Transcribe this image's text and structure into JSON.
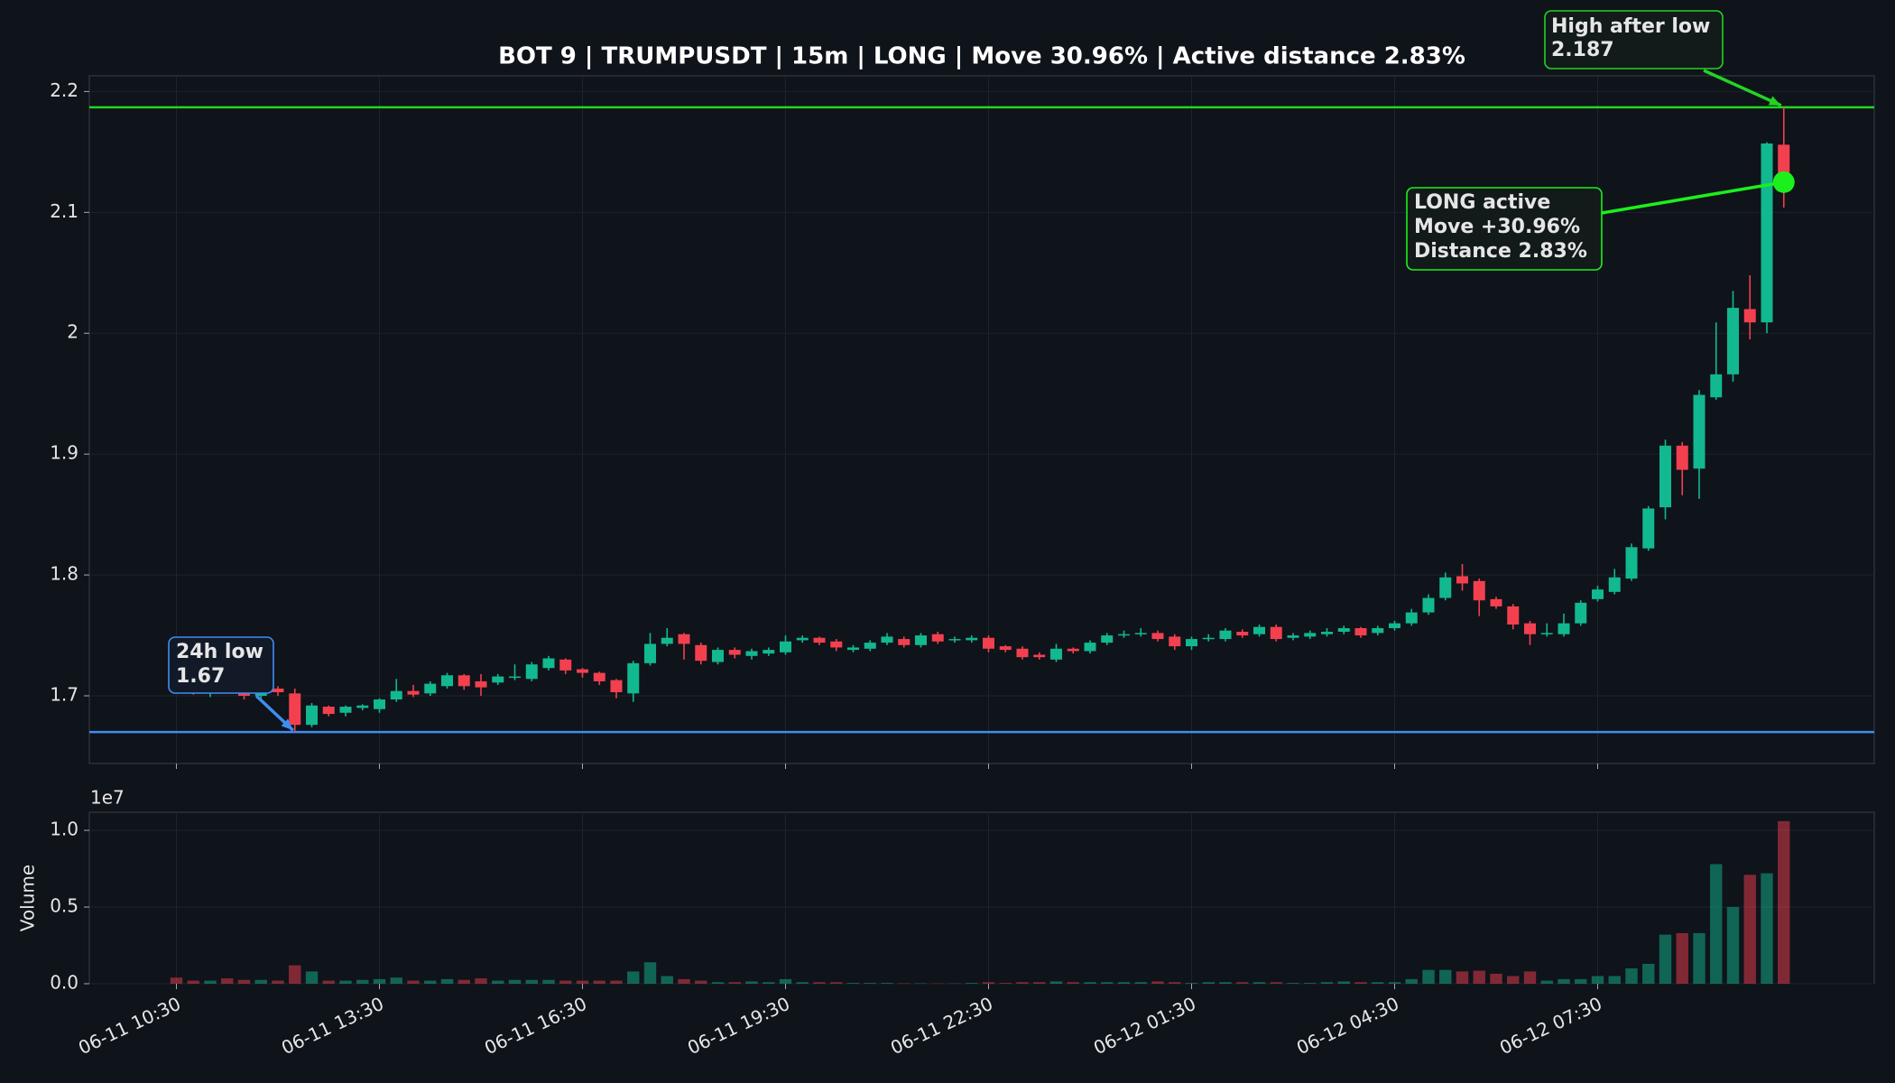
{
  "chart_data": {
    "type": "candlestick",
    "title": "BOT 9 | TRUMPUSDT | 15m | LONG | Move 30.96% | Active distance 2.83%",
    "x": [
      "06-11 10:30",
      "06-11 10:45",
      "06-11 11:00",
      "06-11 11:15",
      "06-11 11:30",
      "06-11 11:45",
      "06-11 12:00",
      "06-11 12:15",
      "06-11 12:30",
      "06-11 12:45",
      "06-11 13:00",
      "06-11 13:15",
      "06-11 13:30",
      "06-11 13:45",
      "06-11 14:00",
      "06-11 14:15",
      "06-11 14:30",
      "06-11 14:45",
      "06-11 15:00",
      "06-11 15:15",
      "06-11 15:30",
      "06-11 15:45",
      "06-11 16:00",
      "06-11 16:15",
      "06-11 16:30",
      "06-11 16:45",
      "06-11 17:00",
      "06-11 17:15",
      "06-11 17:30",
      "06-11 17:45",
      "06-11 18:00",
      "06-11 18:15",
      "06-11 18:30",
      "06-11 18:45",
      "06-11 19:00",
      "06-11 19:15",
      "06-11 19:30",
      "06-11 19:45",
      "06-11 20:00",
      "06-11 20:15",
      "06-11 20:30",
      "06-11 20:45",
      "06-11 21:00",
      "06-11 21:15",
      "06-11 21:30",
      "06-11 21:45",
      "06-11 22:00",
      "06-11 22:15",
      "06-11 22:30",
      "06-11 22:45",
      "06-11 23:00",
      "06-11 23:15",
      "06-11 23:30",
      "06-11 23:45",
      "06-12 00:00",
      "06-12 00:15",
      "06-12 00:30",
      "06-12 00:45",
      "06-12 01:00",
      "06-12 01:15",
      "06-12 01:30",
      "06-12 01:45",
      "06-12 02:00",
      "06-12 02:15",
      "06-12 02:30",
      "06-12 02:45",
      "06-12 03:00",
      "06-12 03:15",
      "06-12 03:30",
      "06-12 03:45",
      "06-12 04:00",
      "06-12 04:15",
      "06-12 04:30",
      "06-12 04:45",
      "06-12 05:00",
      "06-12 05:15",
      "06-12 05:30",
      "06-12 05:45",
      "06-12 06:00",
      "06-12 06:15",
      "06-12 06:30",
      "06-12 06:45",
      "06-12 07:00",
      "06-12 07:15",
      "06-12 07:30",
      "06-12 07:45",
      "06-12 08:00",
      "06-12 08:15",
      "06-12 08:30",
      "06-12 08:45",
      "06-12 09:00",
      "06-12 09:15",
      "06-12 09:30",
      "06-12 09:45",
      "06-12 10:00",
      "06-12 10:15"
    ],
    "open": [
      1.708,
      1.706,
      1.703,
      1.711,
      1.704,
      1.7,
      1.706,
      1.702,
      1.676,
      1.691,
      1.686,
      1.69,
      1.689,
      1.697,
      1.704,
      1.702,
      1.708,
      1.717,
      1.712,
      1.711,
      1.715,
      1.714,
      1.723,
      1.73,
      1.722,
      1.719,
      1.713,
      1.702,
      1.727,
      1.743,
      1.751,
      1.742,
      1.728,
      1.738,
      1.733,
      1.735,
      1.736,
      1.746,
      1.748,
      1.745,
      1.738,
      1.739,
      1.744,
      1.747,
      1.742,
      1.751,
      1.746,
      1.746,
      1.748,
      1.741,
      1.739,
      1.734,
      1.73,
      1.739,
      1.737,
      1.744,
      1.75,
      1.751,
      1.752,
      1.749,
      1.741,
      1.747,
      1.747,
      1.753,
      1.751,
      1.757,
      1.748,
      1.749,
      1.751,
      1.753,
      1.756,
      1.752,
      1.756,
      1.76,
      1.769,
      1.781,
      1.799,
      1.795,
      1.78,
      1.774,
      1.76,
      1.751,
      1.751,
      1.76,
      1.78,
      1.786,
      1.797,
      1.822,
      1.856,
      1.907,
      1.888,
      1.947,
      1.966,
      2.02,
      2.009,
      2.156
    ],
    "high": [
      1.712,
      1.709,
      1.706,
      1.713,
      1.706,
      1.705,
      1.708,
      1.706,
      1.694,
      1.692,
      1.692,
      1.693,
      1.698,
      1.714,
      1.709,
      1.712,
      1.719,
      1.718,
      1.718,
      1.718,
      1.726,
      1.728,
      1.733,
      1.731,
      1.723,
      1.72,
      1.714,
      1.729,
      1.752,
      1.756,
      1.752,
      1.744,
      1.74,
      1.74,
      1.739,
      1.74,
      1.75,
      1.75,
      1.749,
      1.747,
      1.742,
      1.746,
      1.752,
      1.749,
      1.752,
      1.753,
      1.749,
      1.75,
      1.75,
      1.742,
      1.741,
      1.736,
      1.743,
      1.74,
      1.746,
      1.752,
      1.754,
      1.756,
      1.754,
      1.751,
      1.749,
      1.751,
      1.756,
      1.755,
      1.759,
      1.759,
      1.752,
      1.754,
      1.756,
      1.758,
      1.757,
      1.758,
      1.762,
      1.772,
      1.784,
      1.802,
      1.809,
      1.797,
      1.782,
      1.776,
      1.762,
      1.76,
      1.768,
      1.779,
      1.791,
      1.805,
      1.826,
      1.857,
      1.912,
      1.91,
      1.953,
      2.009,
      2.035,
      2.048,
      2.158,
      2.187
    ],
    "low": [
      1.704,
      1.701,
      1.699,
      1.702,
      1.697,
      1.698,
      1.7,
      1.67,
      1.674,
      1.683,
      1.683,
      1.688,
      1.686,
      1.695,
      1.699,
      1.7,
      1.706,
      1.705,
      1.7,
      1.709,
      1.713,
      1.712,
      1.721,
      1.718,
      1.715,
      1.709,
      1.698,
      1.695,
      1.725,
      1.741,
      1.73,
      1.726,
      1.726,
      1.731,
      1.73,
      1.733,
      1.734,
      1.744,
      1.742,
      1.737,
      1.736,
      1.737,
      1.742,
      1.74,
      1.74,
      1.743,
      1.744,
      1.744,
      1.736,
      1.736,
      1.73,
      1.73,
      1.728,
      1.735,
      1.735,
      1.742,
      1.748,
      1.749,
      1.745,
      1.738,
      1.738,
      1.745,
      1.745,
      1.748,
      1.749,
      1.745,
      1.746,
      1.747,
      1.749,
      1.751,
      1.748,
      1.75,
      1.754,
      1.758,
      1.767,
      1.779,
      1.787,
      1.766,
      1.772,
      1.755,
      1.742,
      1.749,
      1.749,
      1.758,
      1.778,
      1.784,
      1.795,
      1.82,
      1.846,
      1.866,
      1.863,
      1.945,
      1.96,
      1.995,
      2.0,
      2.104
    ],
    "close": [
      1.706,
      1.703,
      1.705,
      1.704,
      1.7,
      1.703,
      1.703,
      1.676,
      1.692,
      1.685,
      1.691,
      1.692,
      1.697,
      1.704,
      1.701,
      1.71,
      1.717,
      1.708,
      1.707,
      1.716,
      1.716,
      1.726,
      1.731,
      1.721,
      1.719,
      1.712,
      1.703,
      1.727,
      1.743,
      1.748,
      1.743,
      1.729,
      1.738,
      1.734,
      1.737,
      1.738,
      1.745,
      1.748,
      1.744,
      1.74,
      1.74,
      1.744,
      1.749,
      1.742,
      1.75,
      1.745,
      1.747,
      1.748,
      1.739,
      1.738,
      1.732,
      1.732,
      1.739,
      1.737,
      1.744,
      1.75,
      1.751,
      1.752,
      1.747,
      1.741,
      1.747,
      1.748,
      1.754,
      1.75,
      1.757,
      1.747,
      1.75,
      1.752,
      1.753,
      1.756,
      1.75,
      1.756,
      1.76,
      1.769,
      1.781,
      1.798,
      1.793,
      1.779,
      1.774,
      1.759,
      1.751,
      1.752,
      1.76,
      1.777,
      1.788,
      1.798,
      1.823,
      1.855,
      1.907,
      1.887,
      1.949,
      1.966,
      2.021,
      2.009,
      2.157,
      2.125
    ],
    "volume": [
      0.04,
      0.02,
      0.02,
      0.035,
      0.025,
      0.025,
      0.02,
      0.12,
      0.08,
      0.02,
      0.02,
      0.025,
      0.03,
      0.04,
      0.02,
      0.02,
      0.03,
      0.025,
      0.035,
      0.02,
      0.025,
      0.025,
      0.025,
      0.02,
      0.02,
      0.02,
      0.02,
      0.08,
      0.14,
      0.05,
      0.03,
      0.02,
      0.01,
      0.01,
      0.015,
      0.01,
      0.03,
      0.01,
      0.01,
      0.01,
      0.005,
      0.005,
      0.005,
      0.003,
      0.003,
      0.002,
      0.002,
      0.005,
      0.01,
      0.005,
      0.01,
      0.01,
      0.015,
      0.01,
      0.01,
      0.01,
      0.01,
      0.01,
      0.015,
      0.01,
      0.005,
      0.01,
      0.01,
      0.01,
      0.01,
      0.01,
      0.005,
      0.005,
      0.01,
      0.015,
      0.01,
      0.01,
      0.01,
      0.03,
      0.09,
      0.09,
      0.08,
      0.085,
      0.065,
      0.05,
      0.08,
      0.02,
      0.03,
      0.03,
      0.05,
      0.05,
      0.1,
      0.13,
      0.32,
      0.33,
      0.33,
      0.78,
      0.5,
      0.71,
      0.72,
      1.06
    ],
    "up_color": "#12b890",
    "down_color": "#f2404f",
    "ylim": [
      1.644,
      2.213
    ],
    "yticks": [
      1.7,
      1.8,
      1.9,
      2,
      2.1,
      2.2
    ],
    "xticks": [
      "06-11 10:30",
      "06-11 13:30",
      "06-11 16:30",
      "06-11 19:30",
      "06-11 22:30",
      "06-12 01:30",
      "06-12 04:30",
      "06-12 07:30"
    ],
    "volume_label": "Volume",
    "volume_offset": "1e7",
    "volume_ylim": [
      0,
      1.118
    ],
    "volume_yticks": [
      {
        "value": 0,
        "label": "0.0"
      },
      {
        "value": 0.5,
        "label": "0.5"
      },
      {
        "value": 1,
        "label": "1.0"
      }
    ],
    "grid": true,
    "low_line": {
      "label": "24h low",
      "value": 1.67,
      "color": "#3d8ef0"
    },
    "high_line": {
      "label": "High after low",
      "value": 2.187,
      "color": "#22d422"
    },
    "active": {
      "lines": [
        "LONG active",
        "Move +30.96%",
        "Distance 2.83%"
      ],
      "color": "#1cf01c"
    }
  }
}
